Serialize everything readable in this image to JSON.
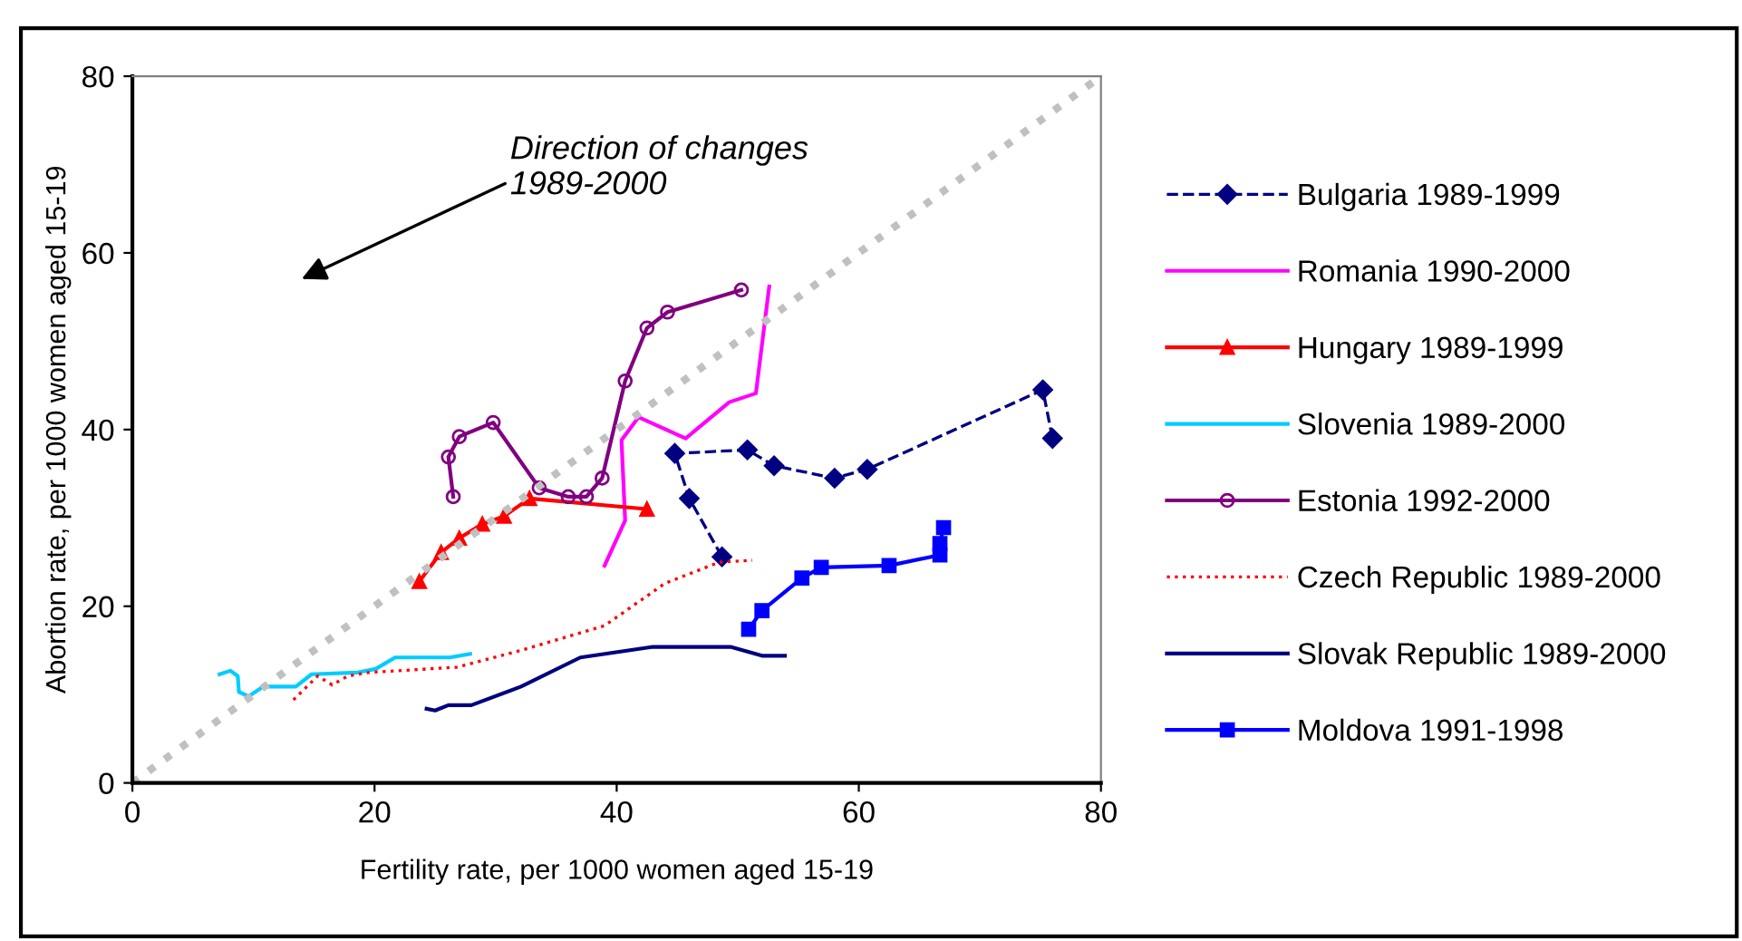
{
  "chart_data": {
    "type": "line",
    "xlabel": "Fertility rate, per 1000 women aged 15-19",
    "ylabel": "Abortion rate, per 1000 women aged 15-19",
    "xlim": [
      0,
      80
    ],
    "ylim": [
      0,
      80
    ],
    "xticks": [
      0,
      20,
      40,
      60,
      80
    ],
    "yticks": [
      0,
      20,
      40,
      60,
      80
    ],
    "grid": false,
    "legend": "right",
    "annotations": [
      "Direction of changes\n1989-2000"
    ],
    "series": [
      {
        "name": "Bulgaria 1989-1999",
        "color": "#000080",
        "marker": "diamond",
        "line_style": "dashed",
        "x": [
          76.0,
          75.2,
          60.7,
          58.0,
          53.0,
          50.8,
          44.8,
          46.0,
          48.7
        ],
        "values": [
          39.0,
          44.5,
          35.5,
          34.5,
          35.9,
          37.7,
          37.3,
          32.2,
          25.6
        ]
      },
      {
        "name": "Romania 1990-2000",
        "color": "#ff00ff",
        "marker": "none",
        "line_style": "solid",
        "x": [
          52.6,
          51.5,
          49.3,
          45.7,
          41.8,
          40.4,
          40.7,
          39.0
        ],
        "values": [
          56.2,
          44.1,
          43.1,
          39.0,
          41.4,
          38.8,
          29.7,
          24.6
        ]
      },
      {
        "name": "Hungary 1989-1999",
        "color": "#ff0000",
        "marker": "triangle",
        "line_style": "solid",
        "x": [
          23.7,
          25.5,
          27.0,
          28.9,
          30.7,
          32.8,
          42.5
        ],
        "values": [
          22.8,
          26.1,
          27.7,
          29.3,
          30.2,
          32.2,
          31.0
        ]
      },
      {
        "name": "Slovenia 1989-2000",
        "color": "#00ccff",
        "marker": "none",
        "line_style": "solid",
        "x": [
          7.2,
          8.1,
          8.7,
          8.8,
          9.6,
          10.8,
          13.5,
          14.8,
          18.6,
          20.1,
          21.7,
          26.2,
          27.9
        ],
        "values": [
          12.3,
          12.7,
          12.1,
          10.3,
          9.8,
          10.9,
          10.9,
          12.3,
          12.5,
          12.9,
          14.2,
          14.2,
          14.6
        ]
      },
      {
        "name": "Estonia 1992-2000",
        "color": "#800080",
        "marker": "circle",
        "line_style": "solid",
        "x": [
          26.5,
          26.1,
          27.0,
          29.8,
          33.6,
          36.0,
          37.5,
          38.8,
          40.7,
          42.5,
          44.2,
          50.3
        ],
        "values": [
          32.4,
          36.9,
          39.2,
          40.8,
          33.4,
          32.4,
          32.4,
          34.5,
          45.5,
          51.5,
          53.3,
          55.8
        ]
      },
      {
        "name": "Czech Republic 1989-2000",
        "color": "#ff0000",
        "marker": "none",
        "line_style": "dotted",
        "x": [
          13.3,
          15.3,
          16.5,
          17.8,
          19.5,
          26.8,
          32.1,
          39.0,
          44.0,
          48.5,
          51.2
        ],
        "values": [
          9.4,
          12.1,
          11.1,
          12.1,
          12.5,
          13.1,
          15.0,
          17.8,
          22.6,
          25.0,
          25.2
        ]
      },
      {
        "name": "Slovak Republic 1989-2000",
        "color": "#000080",
        "marker": "none",
        "line_style": "solid",
        "x": [
          24.3,
          25.0,
          26.1,
          28.0,
          32.1,
          37.0,
          43.0,
          49.4,
          52.0,
          53.9
        ],
        "values": [
          8.4,
          8.2,
          8.8,
          8.8,
          10.9,
          14.2,
          15.4,
          15.4,
          14.4,
          14.4
        ]
      },
      {
        "name": "Moldova 1991-1998",
        "color": "#0000ff",
        "marker": "square",
        "line_style": "solid",
        "x": [
          50.9,
          52.0,
          55.3,
          56.9,
          62.5,
          66.7,
          66.7,
          67.0
        ],
        "values": [
          17.4,
          19.5,
          23.2,
          24.4,
          24.6,
          25.8,
          27.1,
          28.9
        ]
      },
      {
        "color": "#c0c0c0",
        "marker": "none",
        "line_style": "dotted",
        "x": [
          0,
          80
        ],
        "values": [
          0,
          80
        ]
      }
    ]
  }
}
